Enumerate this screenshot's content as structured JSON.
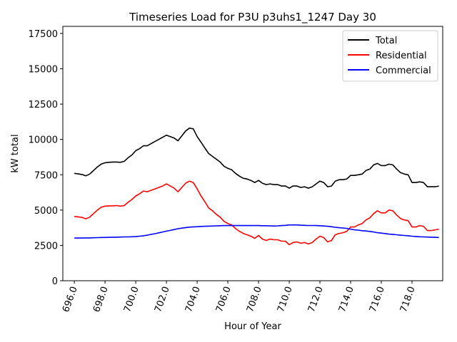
{
  "chart_data": {
    "type": "line",
    "title": "Timeseries Load for P3U p3uhs1_1247  Day 30",
    "xlabel": "Hour of Year",
    "ylabel": "kW total",
    "xlim": [
      695.25,
      720.0
    ],
    "ylim": [
      0,
      18000
    ],
    "x_ticks": [
      696,
      698,
      700,
      702,
      704,
      706,
      708,
      710,
      712,
      714,
      716,
      718
    ],
    "x_tick_labels": [
      "696.0",
      "698.0",
      "700.0",
      "702.0",
      "704.0",
      "706.0",
      "708.0",
      "710.0",
      "712.0",
      "714.0",
      "716.0",
      "718.0"
    ],
    "y_ticks": [
      0,
      2500,
      5000,
      7500,
      10000,
      12500,
      15000,
      17500
    ],
    "y_tick_labels": [
      "0",
      "2500",
      "5000",
      "7500",
      "10000",
      "12500",
      "15000",
      "17500"
    ],
    "legend_position": "top-right",
    "x": [
      696.0,
      696.25,
      696.5,
      696.75,
      697.0,
      697.25,
      697.5,
      697.75,
      698.0,
      698.25,
      698.5,
      698.75,
      699.0,
      699.25,
      699.5,
      699.75,
      700.0,
      700.25,
      700.5,
      700.75,
      701.0,
      701.25,
      701.5,
      701.75,
      702.0,
      702.25,
      702.5,
      702.75,
      703.0,
      703.25,
      703.5,
      703.75,
      704.0,
      704.25,
      704.5,
      704.75,
      705.0,
      705.25,
      705.5,
      705.75,
      706.0,
      706.25,
      706.5,
      706.75,
      707.0,
      707.25,
      707.5,
      707.75,
      708.0,
      708.25,
      708.5,
      708.75,
      709.0,
      709.25,
      709.5,
      709.75,
      710.0,
      710.25,
      710.5,
      710.75,
      711.0,
      711.25,
      711.5,
      711.75,
      712.0,
      712.25,
      712.5,
      712.75,
      713.0,
      713.25,
      713.5,
      713.75,
      714.0,
      714.25,
      714.5,
      714.75,
      715.0,
      715.25,
      715.5,
      715.75,
      716.0,
      716.25,
      716.5,
      716.75,
      717.0,
      717.25,
      717.5,
      717.75,
      718.0,
      718.25,
      718.5,
      718.75,
      719.0,
      719.25,
      719.5,
      719.75
    ],
    "series": [
      {
        "name": "Total",
        "color": "#000000",
        "values": [
          7600,
          7560,
          7520,
          7420,
          7550,
          7800,
          8050,
          8250,
          8350,
          8380,
          8400,
          8400,
          8380,
          8450,
          8700,
          8900,
          9200,
          9350,
          9550,
          9550,
          9700,
          9850,
          10000,
          10150,
          10300,
          10200,
          10100,
          9900,
          10250,
          10600,
          10800,
          10750,
          10200,
          9800,
          9400,
          9000,
          8800,
          8600,
          8400,
          8100,
          7950,
          7850,
          7600,
          7400,
          7250,
          7200,
          7100,
          6950,
          7100,
          6900,
          6800,
          6850,
          6800,
          6800,
          6700,
          6700,
          6550,
          6700,
          6700,
          6600,
          6650,
          6550,
          6650,
          6850,
          7050,
          6950,
          6650,
          6700,
          7050,
          7150,
          7150,
          7200,
          7450,
          7450,
          7500,
          7550,
          7800,
          7900,
          8200,
          8300,
          8150,
          8150,
          8250,
          8200,
          7900,
          7650,
          7550,
          7500,
          6950,
          6950,
          7000,
          6950,
          6650,
          6650,
          6650,
          6700
        ]
      },
      {
        "name": "Residential",
        "color": "#ff0000",
        "values": [
          4550,
          4520,
          4480,
          4380,
          4500,
          4750,
          5000,
          5200,
          5280,
          5300,
          5300,
          5320,
          5280,
          5320,
          5550,
          5750,
          6000,
          6150,
          6350,
          6300,
          6400,
          6500,
          6600,
          6700,
          6850,
          6700,
          6550,
          6300,
          6600,
          6900,
          7050,
          6950,
          6500,
          6000,
          5600,
          5150,
          4950,
          4700,
          4500,
          4200,
          4050,
          3950,
          3700,
          3500,
          3350,
          3250,
          3150,
          3000,
          3200,
          2950,
          2850,
          2950,
          2900,
          2900,
          2800,
          2800,
          2550,
          2700,
          2750,
          2650,
          2700,
          2600,
          2700,
          2950,
          3150,
          3050,
          2750,
          2850,
          3250,
          3350,
          3400,
          3500,
          3800,
          3800,
          3950,
          4050,
          4300,
          4450,
          4750,
          4950,
          4800,
          4800,
          5000,
          4950,
          4650,
          4400,
          4300,
          4250,
          3800,
          3800,
          3900,
          3850,
          3550,
          3550,
          3600,
          3650
        ]
      },
      {
        "name": "Commercial",
        "color": "#0000ff",
        "values": [
          3020,
          3020,
          3020,
          3030,
          3030,
          3040,
          3050,
          3060,
          3060,
          3070,
          3080,
          3080,
          3090,
          3100,
          3100,
          3110,
          3120,
          3150,
          3180,
          3220,
          3280,
          3330,
          3390,
          3450,
          3510,
          3560,
          3620,
          3680,
          3720,
          3760,
          3790,
          3810,
          3820,
          3840,
          3850,
          3860,
          3870,
          3880,
          3890,
          3900,
          3900,
          3900,
          3900,
          3900,
          3900,
          3900,
          3900,
          3900,
          3900,
          3890,
          3890,
          3880,
          3870,
          3880,
          3900,
          3920,
          3950,
          3950,
          3950,
          3930,
          3920,
          3910,
          3910,
          3900,
          3890,
          3870,
          3850,
          3820,
          3780,
          3750,
          3730,
          3700,
          3650,
          3600,
          3580,
          3540,
          3520,
          3490,
          3450,
          3400,
          3370,
          3340,
          3300,
          3280,
          3250,
          3220,
          3200,
          3180,
          3150,
          3130,
          3110,
          3100,
          3090,
          3080,
          3070,
          3060
        ]
      }
    ]
  }
}
